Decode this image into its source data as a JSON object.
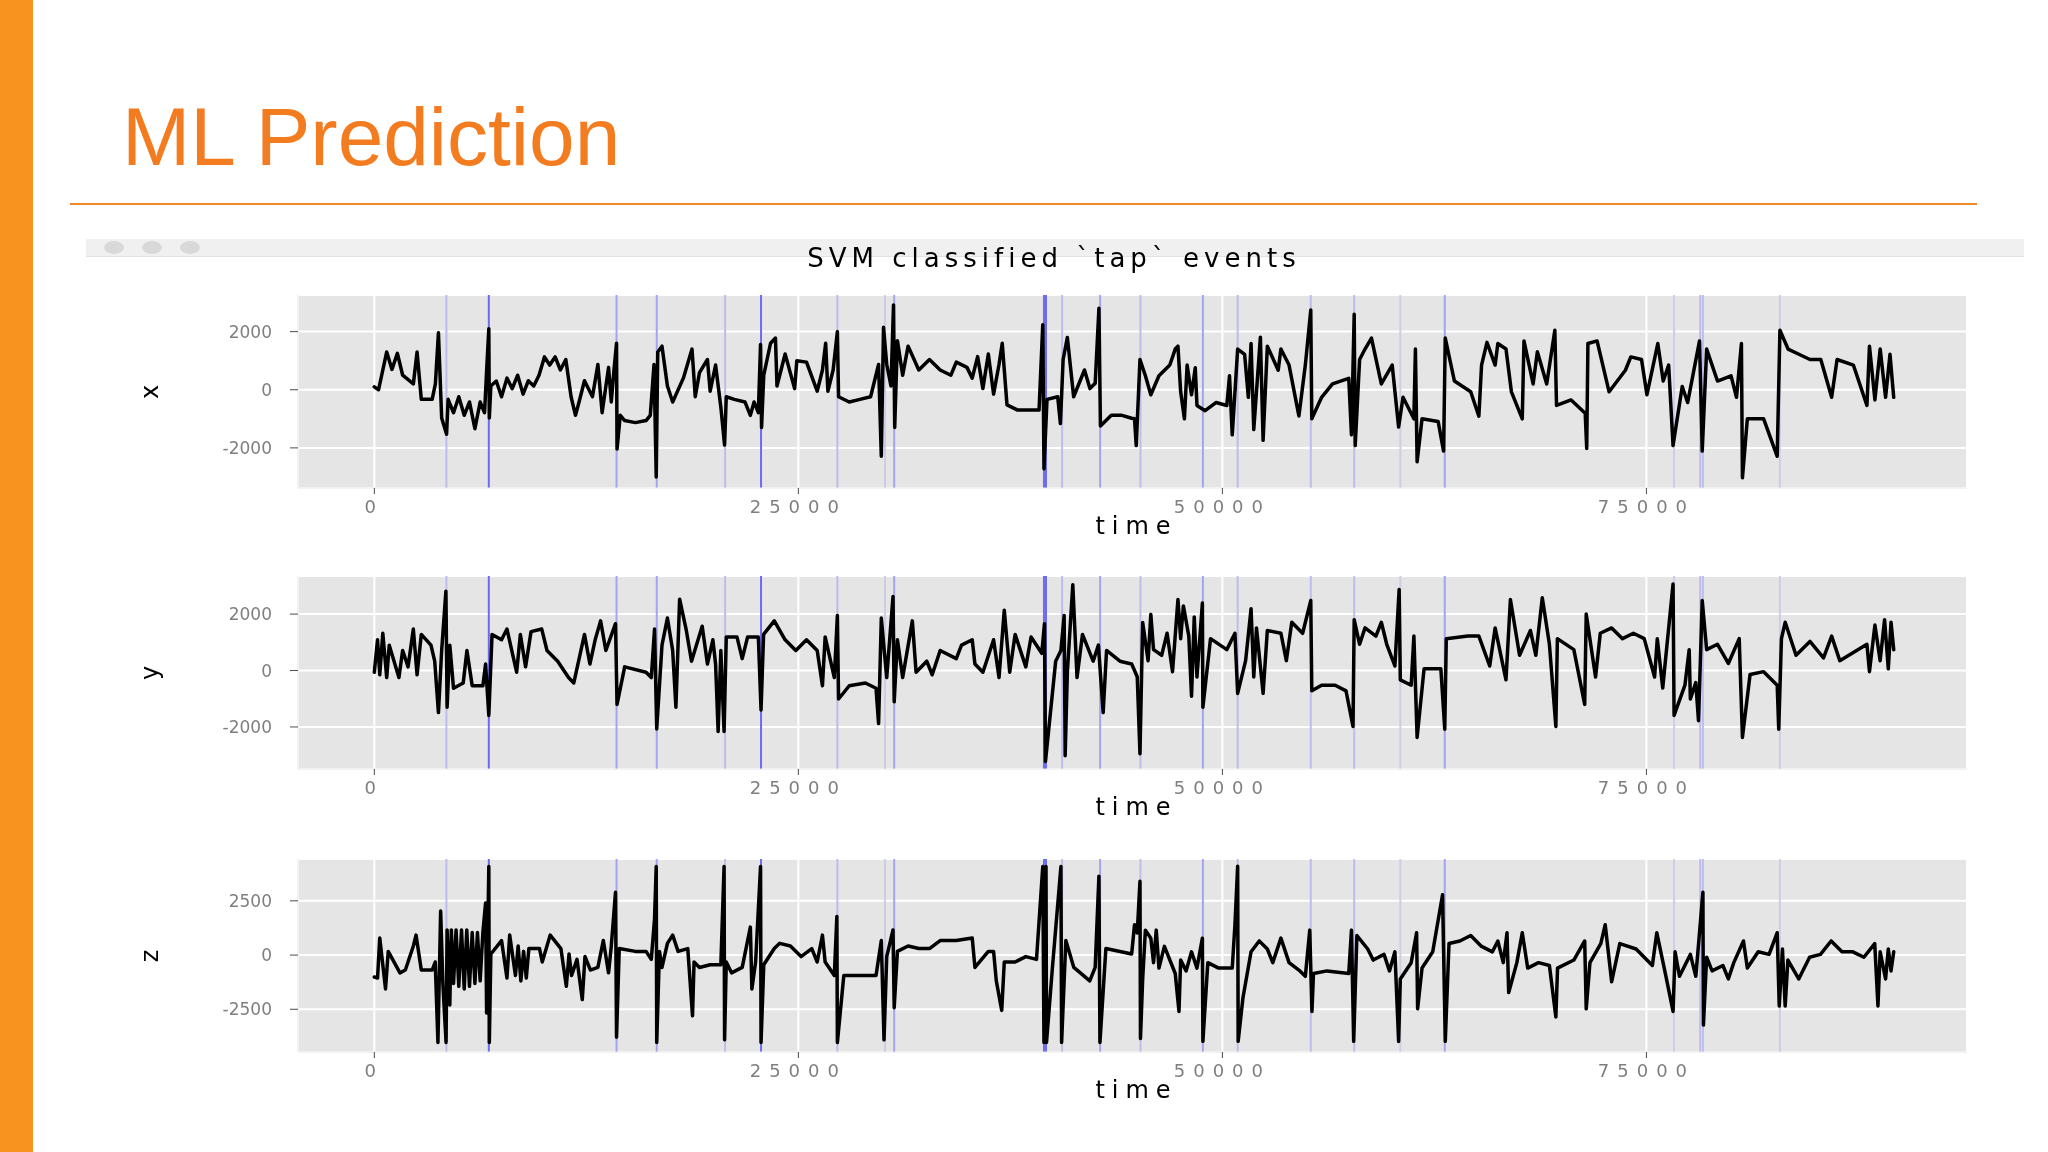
{
  "chart_data": [
    {
      "type": "line",
      "title": "ML Prediction",
      "subtitle": "SVM classified `tap` events",
      "xlabel": "time",
      "ylabel": "x",
      "color": "#000000",
      "marker": "none",
      "line_style": "solid",
      "grid": true,
      "xlim": [
        -4500,
        93900
      ],
      "xticks": [
        0,
        25000,
        50000,
        75000
      ],
      "ylim": [
        -3380,
        3260
      ],
      "yticks": [
        -2000,
        0,
        2000
      ],
      "x": [
        0,
        250,
        730,
        1040,
        1360,
        1670,
        2300,
        2520,
        2770,
        3410,
        3600,
        3780,
        3970,
        4260,
        4350,
        4670,
        4980,
        5300,
        5610,
        5930,
        6240,
        6500,
        6620,
        6750,
        6780,
        6870,
        7190,
        7500,
        7820,
        8130,
        8450,
        8770,
        9080,
        9400,
        9710,
        10030,
        10340,
        10660,
        10970,
        11290,
        11600,
        11860,
        12070,
        12390,
        12860,
        13180,
        13430,
        13810,
        13970,
        14130,
        14280,
        14310,
        14500,
        14760,
        15390,
        16020,
        16270,
        16490,
        16620,
        16710,
        16960,
        17280,
        17590,
        18220,
        18730,
        18920,
        19170,
        19640,
        19800,
        20120,
        20430,
        20650,
        20750,
        21220,
        21850,
        22170,
        22390,
        22640,
        22770,
        22830,
        22960,
        23360,
        23650,
        23740,
        24220,
        24780,
        24910,
        25480,
        26110,
        26420,
        26610,
        26740,
        27050,
        27300,
        27370,
        28000,
        28630,
        29260,
        29730,
        29890,
        30020,
        30210,
        30460,
        30610,
        30680,
        30840,
        31150,
        31470,
        32100,
        32730,
        33360,
        33990,
        34310,
        34940,
        35250,
        35570,
        35880,
        36200,
        36510,
        36830,
        37020,
        37300,
        37930,
        38560,
        39190,
        39410,
        39480,
        39660,
        40290,
        40450,
        40610,
        40860,
        41230,
        41870,
        42190,
        42500,
        42720,
        42810,
        43450,
        44080,
        44650,
        44820,
        44920,
        45140,
        45460,
        45780,
        46260,
        46900,
        47220,
        47380,
        47540,
        47760,
        47920,
        48180,
        48400,
        48500,
        48980,
        49620,
        50260,
        50420,
        50580,
        50900,
        51310,
        51530,
        51690,
        51850,
        52240,
        52400,
        52650,
        53290,
        53450,
        53930,
        54510,
        54890,
        55210,
        55270,
        55850,
        56490,
        57450,
        57610,
        57770,
        57830,
        58090,
        58410,
        58790,
        59370,
        60010,
        60390,
        60650,
        61290,
        61380,
        61480,
        61770,
        62720,
        63040,
        63140,
        63680,
        64640,
        65120,
        65280,
        65600,
        66080,
        66240,
        66720,
        67040,
        67680,
        67780,
        68320,
        68570,
        69120,
        69600,
        69700,
        70560,
        71390,
        71480,
        71550,
        72090,
        72800,
        73760,
        74080,
        74710,
        75030,
        75670,
        75990,
        76310,
        76570,
        77110,
        77430,
        78130,
        78290,
        78550,
        79190,
        79990,
        80310,
        80600,
        80660,
        80950,
        81910,
        82710,
        82870,
        83350,
        83990,
        84640,
        85280,
        85920,
        86240,
        87200,
        88000,
        88150,
        88470,
        88780,
        89100,
        89360,
        89580
      ],
      "values": [
        100,
        0,
        1300,
        700,
        1250,
        500,
        200,
        1300,
        -330,
        -330,
        200,
        1960,
        -970,
        -1530,
        -330,
        -790,
        -240,
        -880,
        -420,
        -1340,
        -420,
        -790,
        650,
        2100,
        -970,
        130,
        300,
        -240,
        400,
        40,
        500,
        -150,
        310,
        130,
        500,
        1130,
        850,
        1130,
        680,
        1040,
        -240,
        -880,
        -420,
        310,
        -240,
        870,
        -790,
        770,
        -420,
        680,
        1600,
        -2040,
        -880,
        -1060,
        -1130,
        -1060,
        -880,
        870,
        -3000,
        1300,
        1500,
        130,
        -420,
        400,
        1400,
        -240,
        590,
        1040,
        -50,
        850,
        -600,
        -1900,
        -240,
        -330,
        -420,
        -880,
        -420,
        -790,
        1560,
        -1300,
        500,
        1600,
        1780,
        130,
        1230,
        40,
        1000,
        950,
        -50,
        680,
        1600,
        -50,
        680,
        2000,
        -240,
        -420,
        -330,
        -240,
        870,
        -2290,
        2150,
        870,
        130,
        2920,
        -1300,
        1690,
        500,
        1500,
        680,
        1040,
        680,
        500,
        950,
        770,
        400,
        1140,
        40,
        1230,
        -150,
        870,
        1600,
        -520,
        -700,
        -700,
        -700,
        2240,
        -2720,
        -330,
        -240,
        -1160,
        1040,
        1800,
        -240,
        680,
        40,
        220,
        2800,
        -1250,
        -880,
        -880,
        -980,
        -1000,
        -1920,
        1040,
        480,
        -170,
        480,
        850,
        1400,
        1500,
        -70,
        -1000,
        850,
        -170,
        760,
        -540,
        -720,
        -440,
        -540,
        480,
        -1550,
        1400,
        1220,
        -260,
        1590,
        -1370,
        1810,
        -1740,
        1500,
        670,
        1400,
        850,
        -900,
        850,
        2740,
        -1000,
        -260,
        200,
        390,
        -1550,
        2600,
        -1920,
        1040,
        1400,
        1780,
        200,
        850,
        -1280,
        -260,
        -1000,
        1400,
        -2480,
        -1000,
        -1090,
        -2110,
        1780,
        300,
        -70,
        -910,
        850,
        1630,
        850,
        1590,
        1400,
        -70,
        -1000,
        1680,
        200,
        1310,
        200,
        2050,
        -540,
        -350,
        -810,
        -2020,
        1590,
        1680,
        -70,
        670,
        1130,
        1040,
        -170,
        1590,
        300,
        850,
        -1920,
        110,
        -440,
        1680,
        -2110,
        1400,
        300,
        480,
        -260,
        1590,
        -3030,
        -1000,
        -1000,
        -2290,
        2050,
        1400,
        1220,
        1040,
        1040,
        -260,
        1040,
        850,
        -540,
        1500,
        -350,
        1400,
        -260,
        1220,
        -260
      ],
      "ref_lines": [
        {
          "axis": "x",
          "value": 4250,
          "color": "#bdbdec"
        },
        {
          "axis": "x",
          "value": 6750,
          "color": "#6c6cf0"
        },
        {
          "axis": "x",
          "value": 14280,
          "color": "#a4a4ee"
        },
        {
          "axis": "x",
          "value": 16650,
          "color": "#a4a4ee"
        },
        {
          "axis": "x",
          "value": 20680,
          "color": "#bdbdec"
        },
        {
          "axis": "x",
          "value": 22800,
          "color": "#6c6cf0"
        },
        {
          "axis": "x",
          "value": 27300,
          "color": "#bdbdec"
        },
        {
          "axis": "x",
          "value": 30110,
          "color": "#cdcde8"
        },
        {
          "axis": "x",
          "value": 30650,
          "color": "#a4a4ee"
        },
        {
          "axis": "x",
          "value": 39480,
          "color": "#6c6cf0"
        },
        {
          "axis": "x",
          "value": 39600,
          "color": "#6c6cf0"
        },
        {
          "axis": "x",
          "value": 40550,
          "color": "#bdbdec"
        },
        {
          "axis": "x",
          "value": 42790,
          "color": "#a4a4ee"
        },
        {
          "axis": "x",
          "value": 45170,
          "color": "#bdbdec"
        },
        {
          "axis": "x",
          "value": 48850,
          "color": "#a4a4ee"
        },
        {
          "axis": "x",
          "value": 50900,
          "color": "#bdbdec"
        },
        {
          "axis": "x",
          "value": 55210,
          "color": "#bdbdec"
        },
        {
          "axis": "x",
          "value": 57770,
          "color": "#bdbdec"
        },
        {
          "axis": "x",
          "value": 60490,
          "color": "#cdcde8"
        },
        {
          "axis": "x",
          "value": 63110,
          "color": "#a4a4ee"
        },
        {
          "axis": "x",
          "value": 76630,
          "color": "#cdcde8"
        },
        {
          "axis": "x",
          "value": 78170,
          "color": "#bdbdec"
        },
        {
          "axis": "x",
          "value": 78330,
          "color": "#bdbdec"
        },
        {
          "axis": "x",
          "value": 82870,
          "color": "#cdcde8"
        }
      ]
    },
    {
      "type": "line",
      "xlabel": "time",
      "ylabel": "y",
      "color": "#000000",
      "marker": "none",
      "line_style": "solid",
      "grid": true,
      "xlim": [
        -4500,
        93900
      ],
      "xticks": [
        0,
        25000,
        50000,
        75000
      ],
      "ylim": [
        -3490,
        3350
      ],
      "yticks": [
        -2000,
        0,
        2000
      ],
      "x": [
        0,
        190,
        320,
        500,
        730,
        880,
        1450,
        1670,
        1990,
        2300,
        2520,
        2770,
        3340,
        3560,
        3780,
        3970,
        4220,
        4290,
        4450,
        4670,
        5240,
        5460,
        5770,
        6400,
        6560,
        6750,
        6940,
        7500,
        7820,
        8390,
        8610,
        8920,
        9240,
        9870,
        10180,
        10810,
        11450,
        11760,
        12390,
        12710,
        13020,
        13340,
        13650,
        14220,
        14310,
        14760,
        16020,
        16330,
        16520,
        16650,
        16960,
        17280,
        17590,
        17780,
        18000,
        18380,
        18700,
        19330,
        19640,
        19960,
        20120,
        20270,
        20430,
        20620,
        20750,
        21380,
        21690,
        22010,
        22640,
        22800,
        22950,
        23580,
        24220,
        24850,
        25480,
        26110,
        26420,
        26580,
        27120,
        27300,
        27370,
        28000,
        28950,
        29580,
        29730,
        29890,
        30210,
        30580,
        30650,
        30840,
        31150,
        31720,
        31940,
        32570,
        32890,
        33360,
        34310,
        34620,
        35250,
        35410,
        35880,
        36510,
        36830,
        37140,
        37460,
        37780,
        38410,
        38720,
        39350,
        39510,
        39570,
        40170,
        40480,
        40670,
        40730,
        40860,
        41180,
        41430,
        41750,
        42380,
        42690,
        42970,
        43170,
        43960,
        44650,
        44820,
        44980,
        45140,
        45300,
        45620,
        45780,
        45940,
        46420,
        46740,
        47060,
        47380,
        47540,
        47700,
        48020,
        48180,
        48340,
        48500,
        48820,
        48850,
        49300,
        50260,
        50740,
        50900,
        51370,
        51690,
        51850,
        52010,
        52400,
        52650,
        53450,
        53770,
        54090,
        54730,
        55210,
        55270,
        55850,
        56650,
        57290,
        57510,
        57700,
        57770,
        58090,
        58410,
        59050,
        59370,
        59690,
        60170,
        60420,
        60490,
        61130,
        61290,
        61480,
        61890,
        62880,
        63110,
        63200,
        64480,
        65120,
        65760,
        66080,
        66720,
        66980,
        67520,
        68160,
        68480,
        68860,
        69280,
        69660,
        69750,
        70720,
        71360,
        71450,
        72000,
        72280,
        72950,
        73590,
        74230,
        74870,
        75480,
        75640,
        75960,
        76570,
        76630,
        77270,
        77520,
        77590,
        77910,
        78070,
        78290,
        78550,
        79190,
        79830,
        80470,
        80660,
        81110,
        81910,
        82710,
        82800,
        82960,
        83180,
        83820,
        84640,
        85440,
        85920,
        86400,
        87200,
        88000,
        88150,
        88470,
        88780,
        89040,
        89260,
        89420,
        89580
      ],
      "values": [
        -60,
        1090,
        -150,
        1320,
        -250,
        900,
        -250,
        710,
        130,
        1470,
        -150,
        1280,
        900,
        330,
        -1490,
        710,
        2810,
        -1300,
        900,
        -630,
        -440,
        710,
        -540,
        -540,
        230,
        -1590,
        1280,
        1090,
        1470,
        -60,
        1280,
        130,
        1380,
        1470,
        710,
        330,
        -250,
        -440,
        1280,
        230,
        1090,
        1760,
        710,
        1660,
        -1200,
        130,
        -60,
        -250,
        1470,
        -2070,
        900,
        1860,
        710,
        -1300,
        2530,
        1470,
        330,
        1570,
        230,
        1090,
        230,
        -2160,
        710,
        -2160,
        1190,
        1190,
        420,
        1190,
        1190,
        -1400,
        1280,
        1760,
        1090,
        710,
        1090,
        710,
        -540,
        1190,
        -250,
        1950,
        -1010,
        -540,
        -440,
        -630,
        -1880,
        1860,
        -250,
        2620,
        -1110,
        1090,
        -250,
        1760,
        -60,
        330,
        -150,
        710,
        420,
        900,
        1090,
        230,
        -60,
        1090,
        -250,
        2140,
        -60,
        1280,
        130,
        1190,
        610,
        1660,
        -3220,
        330,
        710,
        1950,
        -3020,
        -60,
        3040,
        -250,
        1280,
        330,
        900,
        -1490,
        710,
        330,
        230,
        0,
        -230,
        -2950,
        1700,
        350,
        1990,
        740,
        540,
        1320,
        -40,
        2520,
        1130,
        2290,
        1220,
        -910,
        1900,
        -230,
        2390,
        -1300,
        1130,
        740,
        1320,
        -810,
        350,
        2190,
        -230,
        1510,
        -810,
        1420,
        1320,
        350,
        1710,
        1320,
        2480,
        -720,
        -520,
        -520,
        -720,
        -1400,
        -1980,
        1800,
        930,
        1510,
        1220,
        1710,
        930,
        160,
        2870,
        -330,
        -520,
        1220,
        -2370,
        60,
        60,
        -2080,
        1130,
        1220,
        1220,
        160,
        1510,
        -330,
        2520,
        540,
        1420,
        540,
        2580,
        930,
        -1980,
        1130,
        740,
        -1200,
        2000,
        -230,
        1320,
        1510,
        1130,
        1320,
        1130,
        -230,
        1130,
        -620,
        3070,
        -1590,
        -520,
        740,
        -1010,
        -430,
        -1780,
        2480,
        740,
        930,
        250,
        1130,
        -2370,
        -140,
        -40,
        -520,
        -2080,
        1130,
        1710,
        540,
        1030,
        450,
        1220,
        350,
        640,
        930,
        -40,
        1610,
        350,
        1800,
        60,
        1710,
        740
      ],
      "ref_lines": [
        {
          "axis": "x",
          "value": 4250,
          "color": "#bdbdec"
        },
        {
          "axis": "x",
          "value": 6750,
          "color": "#6c6cf0"
        },
        {
          "axis": "x",
          "value": 14280,
          "color": "#a4a4ee"
        },
        {
          "axis": "x",
          "value": 16650,
          "color": "#a4a4ee"
        },
        {
          "axis": "x",
          "value": 20680,
          "color": "#bdbdec"
        },
        {
          "axis": "x",
          "value": 22800,
          "color": "#6c6cf0"
        },
        {
          "axis": "x",
          "value": 27300,
          "color": "#bdbdec"
        },
        {
          "axis": "x",
          "value": 30110,
          "color": "#cdcde8"
        },
        {
          "axis": "x",
          "value": 30650,
          "color": "#a4a4ee"
        },
        {
          "axis": "x",
          "value": 39480,
          "color": "#6c6cf0"
        },
        {
          "axis": "x",
          "value": 39600,
          "color": "#6c6cf0"
        },
        {
          "axis": "x",
          "value": 40550,
          "color": "#bdbdec"
        },
        {
          "axis": "x",
          "value": 42790,
          "color": "#a4a4ee"
        },
        {
          "axis": "x",
          "value": 45170,
          "color": "#bdbdec"
        },
        {
          "axis": "x",
          "value": 48850,
          "color": "#a4a4ee"
        },
        {
          "axis": "x",
          "value": 50900,
          "color": "#bdbdec"
        },
        {
          "axis": "x",
          "value": 55210,
          "color": "#bdbdec"
        },
        {
          "axis": "x",
          "value": 57770,
          "color": "#bdbdec"
        },
        {
          "axis": "x",
          "value": 60490,
          "color": "#cdcde8"
        },
        {
          "axis": "x",
          "value": 63110,
          "color": "#a4a4ee"
        },
        {
          "axis": "x",
          "value": 76630,
          "color": "#cdcde8"
        },
        {
          "axis": "x",
          "value": 78170,
          "color": "#bdbdec"
        },
        {
          "axis": "x",
          "value": 78330,
          "color": "#bdbdec"
        },
        {
          "axis": "x",
          "value": 82870,
          "color": "#cdcde8"
        }
      ]
    },
    {
      "type": "line",
      "xlabel": "time",
      "ylabel": "z",
      "color": "#000000",
      "marker": "none",
      "line_style": "solid",
      "grid": true,
      "xlim": [
        -4500,
        93900
      ],
      "xticks": [
        0,
        25000,
        50000,
        75000
      ],
      "ylim": [
        -4470,
        4430
      ],
      "yticks": [
        -2500,
        0,
        2500
      ],
      "x": [
        0,
        190,
        320,
        660,
        820,
        1510,
        1830,
        2300,
        2460,
        2770,
        3410,
        3590,
        3750,
        3910,
        4040,
        4230,
        4290,
        4450,
        4540,
        4670,
        4820,
        4980,
        5140,
        5300,
        5450,
        5610,
        5770,
        5930,
        6080,
        6240,
        6400,
        6560,
        6620,
        6750,
        6780,
        6870,
        7500,
        7820,
        7980,
        8320,
        8480,
        8640,
        8800,
        8960,
        9110,
        9740,
        9900,
        10370,
        11000,
        11160,
        11320,
        11480,
        11630,
        11950,
        12260,
        12420,
        12740,
        13180,
        13500,
        13810,
        13970,
        14220,
        14280,
        14440,
        15390,
        16020,
        16330,
        16520,
        16620,
        16650,
        16810,
        16960,
        17280,
        17590,
        17910,
        18480,
        18760,
        18850,
        19170,
        19800,
        20430,
        20620,
        20650,
        20750,
        21060,
        21690,
        22170,
        22260,
        22480,
        22770,
        22800,
        22960,
        23580,
        23900,
        24530,
        25160,
        25790,
        26110,
        26420,
        26580,
        27120,
        27270,
        27300,
        27680,
        28310,
        28950,
        29580,
        29890,
        30050,
        30210,
        30580,
        30650,
        30840,
        31470,
        32100,
        32730,
        33360,
        34310,
        35250,
        35410,
        36200,
        36510,
        36670,
        36990,
        37140,
        37780,
        38410,
        39040,
        39410,
        39480,
        39600,
        39630,
        39980,
        40480,
        40520,
        40770,
        41240,
        42180,
        42500,
        42720,
        42780,
        43130,
        44650,
        44820,
        44980,
        45140,
        45170,
        45300,
        45460,
        45780,
        45940,
        46100,
        46260,
        46580,
        47220,
        47440,
        47540,
        47860,
        48180,
        48500,
        48820,
        48850,
        49140,
        49780,
        50580,
        50740,
        50900,
        50930,
        51210,
        51690,
        52170,
        52650,
        52970,
        53450,
        53930,
        54570,
        54890,
        55150,
        55280,
        55370,
        56170,
        57450,
        57610,
        57740,
        57930,
        58570,
        58890,
        59530,
        59850,
        60170,
        60390,
        60490,
        61130,
        61450,
        61510,
        61770,
        62400,
        62980,
        63140,
        63360,
        64000,
        64640,
        65280,
        65920,
        66240,
        66560,
        66780,
        66880,
        67360,
        67680,
        68000,
        68640,
        69280,
        69660,
        69760,
        70720,
        71360,
        71450,
        71670,
        72310,
        72570,
        72950,
        73430,
        74390,
        75030,
        75350,
        75610,
        76150,
        76570,
        76690,
        76950,
        77590,
        77910,
        78170,
        78330,
        78360,
        78550,
        78870,
        79510,
        79830,
        80150,
        80720,
        80950,
        81590,
        82230,
        82710,
        82830,
        83020,
        83180,
        83340,
        83980,
        84620,
        85260,
        85890,
        86530,
        87170,
        87820,
        88460,
        88650,
        88780,
        89100,
        89260,
        89420,
        89580
      ],
      "values": [
        -1010,
        -1060,
        790,
        -1560,
        170,
        -820,
        -690,
        420,
        920,
        -690,
        -690,
        -320,
        -4030,
        2030,
        -1310,
        -4030,
        1160,
        -2300,
        1160,
        -1310,
        1160,
        -1440,
        1160,
        -1560,
        1160,
        -1440,
        1040,
        -1310,
        1040,
        -1190,
        1040,
        2400,
        -2670,
        4080,
        -4030,
        50,
        670,
        -1060,
        920,
        -940,
        420,
        -1190,
        170,
        -1060,
        300,
        300,
        -320,
        920,
        300,
        -570,
        -1440,
        50,
        -940,
        -200,
        -2050,
        -70,
        -690,
        -570,
        670,
        -820,
        420,
        2900,
        -3790,
        300,
        170,
        170,
        -200,
        1660,
        4080,
        -4030,
        170,
        -570,
        540,
        920,
        170,
        300,
        -2800,
        -320,
        -570,
        -450,
        -450,
        4080,
        -3910,
        -320,
        -820,
        -570,
        1290,
        -1560,
        -320,
        4080,
        -4030,
        -450,
        300,
        540,
        420,
        -70,
        300,
        -320,
        920,
        -320,
        -940,
        1780,
        -4030,
        -940,
        -940,
        -940,
        -940,
        670,
        -3910,
        -70,
        1160,
        -2430,
        170,
        420,
        300,
        300,
        670,
        670,
        790,
        -570,
        170,
        170,
        -1190,
        -2550,
        -320,
        -320,
        -70,
        -200,
        4080,
        -4030,
        4080,
        -4030,
        -570,
        4080,
        -4030,
        670,
        -570,
        -1190,
        -570,
        3640,
        -4030,
        300,
        50,
        1400,
        1020,
        3400,
        -3850,
        -1100,
        1150,
        780,
        -350,
        1150,
        -600,
        400,
        -850,
        -2600,
        -230,
        -730,
        150,
        -600,
        780,
        -3980,
        -350,
        -600,
        -600,
        1400,
        4100,
        -3980,
        -1980,
        150,
        650,
        280,
        -350,
        780,
        -350,
        -730,
        -980,
        1150,
        -2600,
        -850,
        -730,
        -850,
        1150,
        -3980,
        900,
        280,
        -230,
        30,
        -730,
        150,
        -3980,
        -1100,
        -350,
        1030,
        -2480,
        -600,
        150,
        2780,
        -3980,
        530,
        650,
        900,
        400,
        150,
        650,
        -350,
        1030,
        -1730,
        -350,
        1030,
        -600,
        -350,
        -480,
        -2850,
        -600,
        -230,
        650,
        -2480,
        -350,
        530,
        1400,
        -1230,
        530,
        280,
        -230,
        -480,
        1030,
        -980,
        -2600,
        150,
        -980,
        30,
        -980,
        1400,
        2900,
        -3230,
        -100,
        -730,
        -480,
        -1100,
        -350,
        650,
        -600,
        150,
        30,
        1030,
        -2350,
        280,
        -2350,
        -230,
        -1100,
        -100,
        30,
        650,
        150,
        150,
        -100,
        530,
        -2350,
        150,
        -1100,
        280,
        -730,
        150
      ],
      "ref_lines": [
        {
          "axis": "x",
          "value": 4250,
          "color": "#bdbdec"
        },
        {
          "axis": "x",
          "value": 6750,
          "color": "#6c6cf0"
        },
        {
          "axis": "x",
          "value": 14280,
          "color": "#a4a4ee"
        },
        {
          "axis": "x",
          "value": 16650,
          "color": "#a4a4ee"
        },
        {
          "axis": "x",
          "value": 20680,
          "color": "#bdbdec"
        },
        {
          "axis": "x",
          "value": 22800,
          "color": "#6c6cf0"
        },
        {
          "axis": "x",
          "value": 27300,
          "color": "#bdbdec"
        },
        {
          "axis": "x",
          "value": 30110,
          "color": "#cdcde8"
        },
        {
          "axis": "x",
          "value": 30650,
          "color": "#a4a4ee"
        },
        {
          "axis": "x",
          "value": 39480,
          "color": "#6c6cf0"
        },
        {
          "axis": "x",
          "value": 39600,
          "color": "#6c6cf0"
        },
        {
          "axis": "x",
          "value": 40550,
          "color": "#bdbdec"
        },
        {
          "axis": "x",
          "value": 42790,
          "color": "#a4a4ee"
        },
        {
          "axis": "x",
          "value": 45170,
          "color": "#bdbdec"
        },
        {
          "axis": "x",
          "value": 48850,
          "color": "#a4a4ee"
        },
        {
          "axis": "x",
          "value": 50900,
          "color": "#bdbdec"
        },
        {
          "axis": "x",
          "value": 55210,
          "color": "#bdbdec"
        },
        {
          "axis": "x",
          "value": 57770,
          "color": "#bdbdec"
        },
        {
          "axis": "x",
          "value": 60490,
          "color": "#cdcde8"
        },
        {
          "axis": "x",
          "value": 63110,
          "color": "#a4a4ee"
        },
        {
          "axis": "x",
          "value": 76630,
          "color": "#cdcde8"
        },
        {
          "axis": "x",
          "value": 78170,
          "color": "#bdbdec"
        },
        {
          "axis": "x",
          "value": 78330,
          "color": "#bdbdec"
        },
        {
          "axis": "x",
          "value": 82870,
          "color": "#cdcde8"
        }
      ]
    }
  ]
}
